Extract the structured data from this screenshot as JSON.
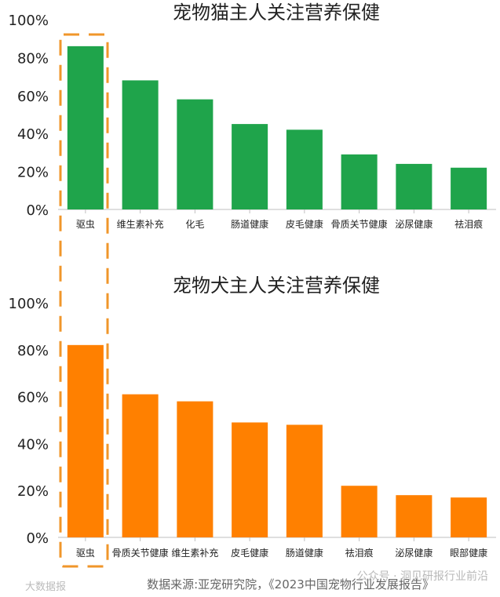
{
  "colors": {
    "cat_bar": "#1fa44b",
    "dog_bar": "#ff8000",
    "highlight": "#f0962a",
    "axis": "#bfbfbf"
  },
  "chart_data": [
    {
      "type": "bar",
      "title": "宠物猫主人关注营养保健",
      "categories": [
        "驱虫",
        "维生素补充",
        "化毛",
        "肠道健康",
        "皮毛健康",
        "骨质关节健康",
        "泌尿健康",
        "祛泪痕"
      ],
      "values": [
        0.86,
        0.68,
        0.58,
        0.45,
        0.42,
        0.29,
        0.24,
        0.22
      ],
      "ylim": [
        0,
        1
      ],
      "yticks": [
        "0%",
        "20%",
        "40%",
        "60%",
        "80%",
        "100%"
      ],
      "grid": false,
      "highlighted_category": "驱虫"
    },
    {
      "type": "bar",
      "title": "宠物犬主人关注营养保健",
      "categories": [
        "驱虫",
        "骨质关节健康",
        "维生素补充",
        "皮毛健康",
        "肠道健康",
        "祛泪痕",
        "泌尿健康",
        "眼部健康"
      ],
      "values": [
        0.82,
        0.61,
        0.58,
        0.49,
        0.48,
        0.22,
        0.18,
        0.17
      ],
      "ylim": [
        0,
        1
      ],
      "yticks": [
        "0%",
        "20%",
        "40%",
        "60%",
        "80%",
        "100%"
      ],
      "grid": false,
      "highlighted_category": "驱虫"
    }
  ],
  "source_note": "数据来源:亚宠研究院，《2023中国宠物行业发展报告》",
  "watermark_right": "公众号 · 洞见研报行业前沿",
  "watermark_left": "大数据报"
}
